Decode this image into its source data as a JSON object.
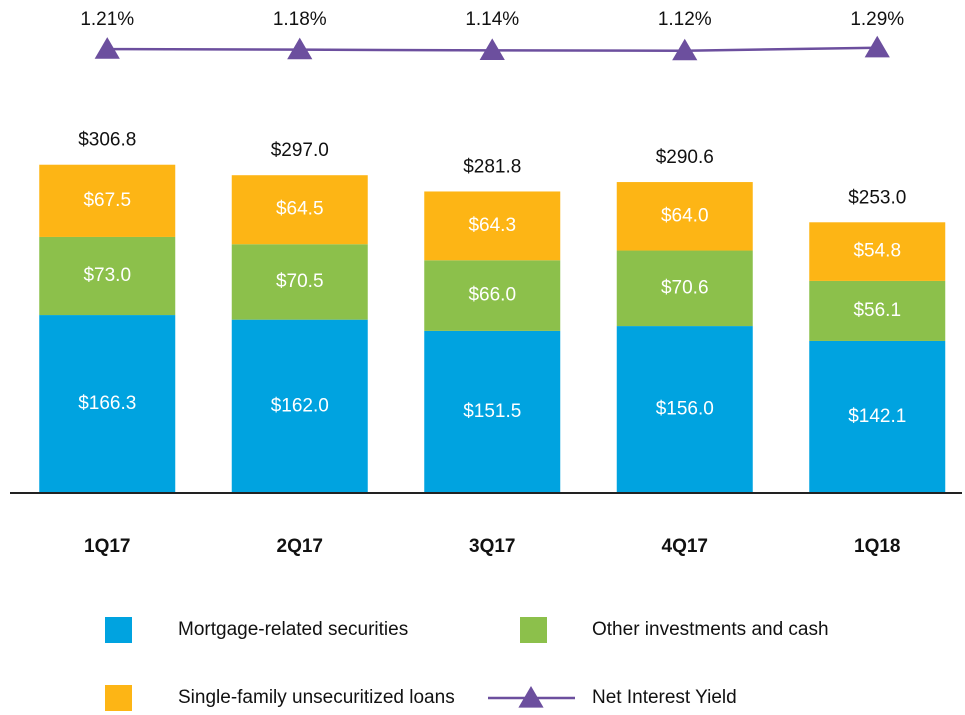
{
  "chart_data": {
    "type": "stacked-bar-line",
    "categories": [
      "1Q17",
      "2Q17",
      "3Q17",
      "4Q17",
      "1Q18"
    ],
    "series": [
      {
        "name": "Mortgage-related securities",
        "color": "#00a3e0",
        "values": [
          166.3,
          162.0,
          151.5,
          156.0,
          142.1
        ],
        "value_labels": [
          "$166.3",
          "$162.0",
          "$151.5",
          "$156.0",
          "$142.1"
        ]
      },
      {
        "name": "Other investments and cash",
        "color": "#8cc04b",
        "values": [
          73.0,
          70.5,
          66.0,
          70.6,
          56.1
        ],
        "value_labels": [
          "$73.0",
          "$70.5",
          "$66.0",
          "$70.6",
          "$56.1"
        ]
      },
      {
        "name": "Single-family unsecuritized loans",
        "color": "#fdb515",
        "values": [
          67.5,
          64.5,
          64.3,
          64.0,
          54.8
        ],
        "value_labels": [
          "$67.5",
          "$64.5",
          "$64.3",
          "$64.0",
          "$54.8"
        ]
      },
      {
        "name": "Net Interest Yield",
        "color": "#6c4f9e",
        "axis": "y2",
        "values": [
          1.21,
          1.18,
          1.14,
          1.12,
          1.29
        ],
        "value_labels": [
          "1.21%",
          "1.18%",
          "1.14%",
          "1.12%",
          "1.29%"
        ]
      }
    ],
    "totals": {
      "values": [
        306.8,
        297.0,
        281.8,
        290.6,
        253.0
      ],
      "value_labels": [
        "$306.8",
        "$297.0",
        "$281.8",
        "$290.6",
        "$253.0"
      ]
    },
    "ylim": [
      0,
      400
    ],
    "y2lim": [
      -24,
      4
    ]
  }
}
